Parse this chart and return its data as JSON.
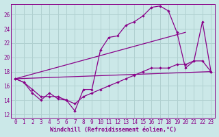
{
  "xlabel": "Windchill (Refroidissement éolien,°C)",
  "xlim": [
    -0.5,
    23.5
  ],
  "ylim": [
    11.5,
    27.5
  ],
  "yticks": [
    12,
    14,
    16,
    18,
    20,
    22,
    24,
    26
  ],
  "xticks": [
    0,
    1,
    2,
    3,
    4,
    5,
    6,
    7,
    8,
    9,
    10,
    11,
    12,
    13,
    14,
    15,
    16,
    17,
    18,
    19,
    20,
    21,
    22,
    23
  ],
  "background_color": "#cbe8e8",
  "grid_color": "#b0d0d0",
  "line_color": "#880088",
  "line1_x": [
    0,
    1,
    2,
    3,
    4,
    5,
    6,
    7,
    8,
    9,
    10,
    11,
    12,
    13,
    14,
    15,
    16,
    17,
    18,
    19,
    20,
    21,
    22,
    23
  ],
  "line1_y": [
    17.0,
    16.5,
    15.0,
    14.0,
    15.0,
    14.2,
    14.0,
    12.5,
    15.5,
    15.5,
    21.0,
    22.8,
    23.0,
    24.5,
    25.0,
    25.8,
    27.0,
    27.2,
    26.5,
    23.5,
    18.5,
    19.5,
    25.0,
    18.0
  ],
  "line2_x": [
    0,
    1,
    2,
    3,
    4,
    5,
    6,
    7,
    8,
    9,
    10,
    11,
    12,
    13,
    14,
    15,
    16,
    17,
    18,
    19,
    20,
    21,
    22,
    23
  ],
  "line2_y": [
    17.0,
    16.5,
    15.5,
    14.5,
    14.5,
    14.5,
    14.0,
    13.5,
    14.5,
    15.0,
    15.5,
    16.0,
    16.5,
    17.0,
    17.5,
    18.0,
    18.5,
    18.5,
    18.5,
    19.0,
    19.0,
    19.5,
    19.5,
    18.0
  ],
  "line3_x": [
    0,
    23
  ],
  "line3_y": [
    17.0,
    18.0
  ],
  "line4_x": [
    0,
    20
  ],
  "line4_y": [
    17.0,
    23.5
  ]
}
